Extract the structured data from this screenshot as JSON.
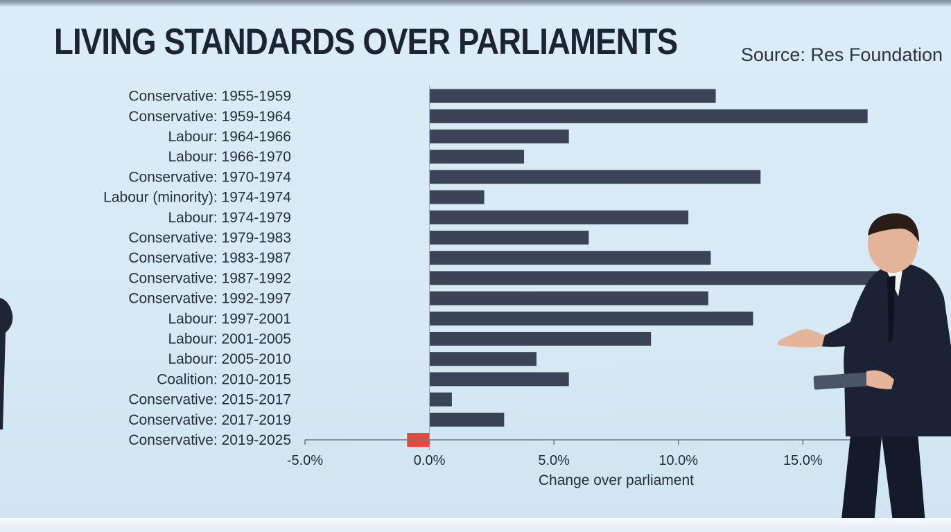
{
  "chart_data": {
    "type": "bar",
    "orientation": "horizontal",
    "title": "LIVING STANDARDS OVER PARLIAMENTS",
    "source": "Source: Res Foundation",
    "xlabel": "Change over parliament",
    "xlim": [
      -5.0,
      18.5
    ],
    "xticks": [
      -5.0,
      0.0,
      5.0,
      10.0,
      15.0
    ],
    "xtick_labels": [
      "-5.0%",
      "0.0%",
      "5.0%",
      "10.0%",
      "15.0%"
    ],
    "grid": false,
    "categories": [
      "Conservative: 1955-1959",
      "Conservative: 1959-1964",
      "Labour: 1964-1966",
      "Labour: 1966-1970",
      "Conservative: 1970-1974",
      "Labour (minority): 1974-1974",
      "Labour: 1974-1979",
      "Conservative: 1979-1983",
      "Conservative: 1983-1987",
      "Conservative: 1987-1992",
      "Conservative: 1992-1997",
      "Labour: 1997-2001",
      "Labour: 2001-2005",
      "Labour: 2005-2010",
      "Coalition: 2010-2015",
      "Conservative: 2015-2017",
      "Conservative: 2017-2019",
      "Conservative: 2019-2025"
    ],
    "values": [
      11.5,
      17.6,
      5.6,
      3.8,
      13.3,
      2.2,
      10.4,
      6.4,
      11.3,
      19.5,
      11.2,
      13.0,
      8.9,
      4.3,
      5.6,
      0.9,
      3.0,
      -0.9
    ],
    "colors": {
      "positive": "#3b4356",
      "negative": "#e8463f"
    }
  },
  "scene": {
    "presenter": "presenter",
    "holding": "tablet"
  }
}
